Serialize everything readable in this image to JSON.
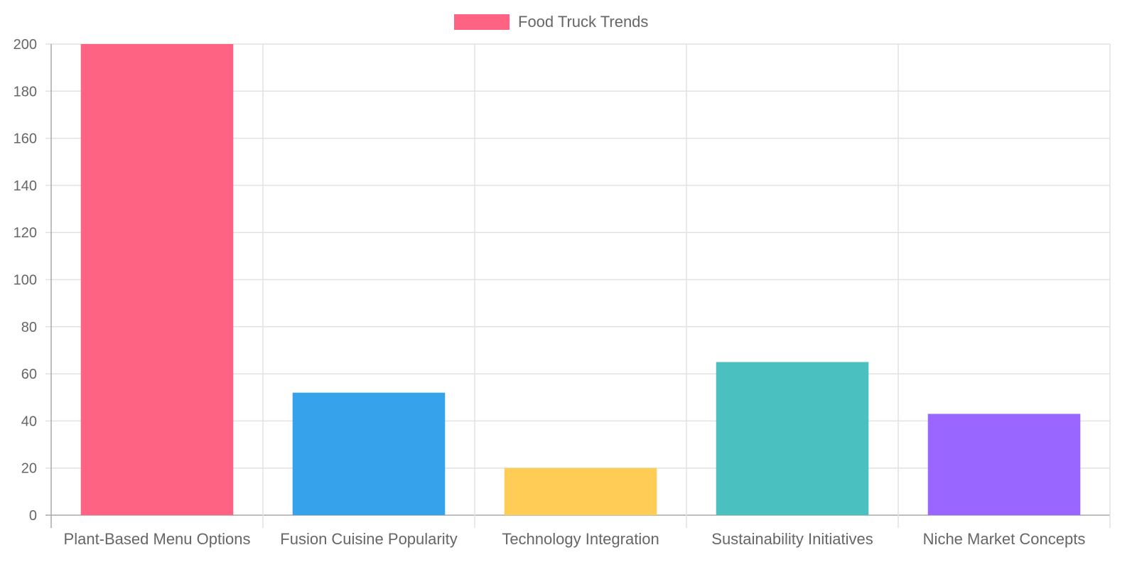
{
  "chart_data": {
    "type": "bar",
    "title": "",
    "xlabel": "",
    "ylabel": "",
    "categories": [
      "Plant-Based Menu Options",
      "Fusion Cuisine Popularity",
      "Technology Integration",
      "Sustainability Initiatives",
      "Niche Market Concepts"
    ],
    "series": [
      {
        "name": "Food Truck Trends",
        "values": [
          200,
          52,
          20,
          65,
          43
        ]
      }
    ],
    "colors": [
      "#ff6384",
      "#36a2eb",
      "#ffcd56",
      "#4bc0c0",
      "#9966ff"
    ],
    "legend_color": "#ff6384",
    "ylim": [
      0,
      200
    ],
    "yticks": [
      0,
      20,
      40,
      60,
      80,
      100,
      120,
      140,
      160,
      180,
      200
    ],
    "grid": true,
    "legend_position": "top"
  }
}
